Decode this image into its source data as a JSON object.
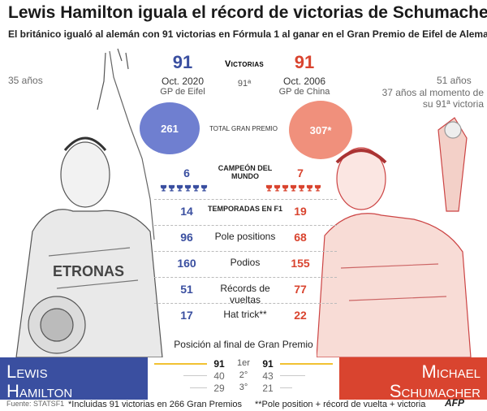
{
  "title": "Lewis Hamilton iguala el récord de victorias de Schumacher",
  "subtitle": "El británico igualó al alemán con 91 victorias en Fórmula 1 al ganar en el Gran Premio de Eifel de Alemania",
  "colors": {
    "hamilton": "#3a4fa0",
    "schumacher": "#d9442f",
    "hamilton_circle": "#6f7fd0",
    "schumacher_circle": "#f0907c",
    "hamilton_bar": "#f1c232"
  },
  "hamilton": {
    "age": "35 años",
    "wins": "91",
    "date": "Oct. 2020",
    "race": "GP de Eifel",
    "total_gp": "261",
    "name_line1": "Lewis",
    "name_line2": "Hamilton"
  },
  "schumacher": {
    "age": "51 años",
    "age_note": "37 años al momento de su 91ª victoria",
    "wins": "91",
    "date": "Oct. 2006",
    "race": "GP de China",
    "total_gp": "307*",
    "name_line1": "Michael",
    "name_line2": "Schumacher"
  },
  "center": {
    "victorias_label": "Victorias",
    "victorias_ordinal": "91ª",
    "total_gp_label": "TOTAL GRAN PREMIO"
  },
  "stats": [
    {
      "label": "Campeón del mundo",
      "hamilton": "6",
      "schumacher": "7"
    },
    {
      "label": "temporadas en F1",
      "hamilton": "14",
      "schumacher": "19"
    },
    {
      "label": "Pole positions",
      "hamilton": "96",
      "schumacher": "68"
    },
    {
      "label": "Podios",
      "hamilton": "160",
      "schumacher": "155"
    },
    {
      "label": "Récords de vueltas",
      "hamilton": "51",
      "schumacher": "77"
    },
    {
      "label": "Hat trick**",
      "hamilton": "17",
      "schumacher": "22"
    }
  ],
  "trophies": {
    "hamilton": 6,
    "schumacher": 7
  },
  "finish_positions": {
    "title": "Posición al final de Gran Premio",
    "rows": [
      {
        "place": "1er",
        "hamilton": "91",
        "schumacher": "91"
      },
      {
        "place": "2°",
        "hamilton": "40",
        "schumacher": "43"
      },
      {
        "place": "3°",
        "hamilton": "29",
        "schumacher": "21"
      }
    ]
  },
  "footer": {
    "source": "Fuente: STATSF1",
    "note1": "*Incluidas 91 victorias en 266 Gran Premios",
    "note2": "**Pole position + récord de vuelta + victoria",
    "agency": "AFP"
  },
  "icons": [
    "trophy-icon",
    "hamilton-sketch",
    "schumacher-sketch",
    "afp-logo"
  ]
}
